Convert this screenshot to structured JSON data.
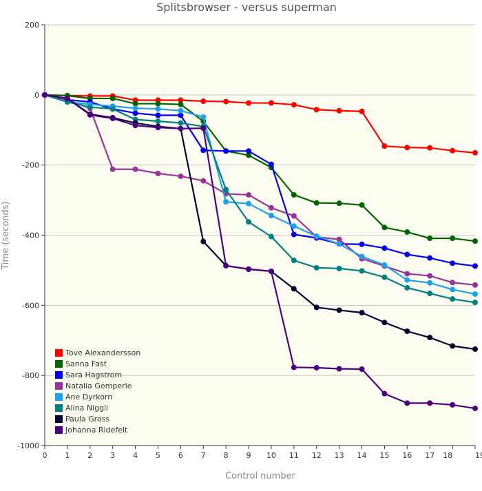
{
  "chart_data": {
    "type": "line",
    "title": "Splitsbrowser - versus superman",
    "xlabel": "Control number",
    "ylabel": "Time (seconds)",
    "xlim": [
      0,
      19
    ],
    "ylim": [
      -1000,
      200
    ],
    "yticks": [
      200,
      0,
      -200,
      -400,
      -600,
      -800,
      -1000
    ],
    "xticks": [
      {
        "value": 0,
        "label": "0"
      },
      {
        "value": 1,
        "label": "1"
      },
      {
        "value": 2,
        "label": "2"
      },
      {
        "value": 3,
        "label": "3"
      },
      {
        "value": 4,
        "label": "4"
      },
      {
        "value": 5,
        "label": "5"
      },
      {
        "value": 6,
        "label": "6"
      },
      {
        "value": 7,
        "label": "7"
      },
      {
        "value": 8,
        "label": "8"
      },
      {
        "value": 9,
        "label": "9"
      },
      {
        "value": 10,
        "label": "10"
      },
      {
        "value": 11,
        "label": "11"
      },
      {
        "value": 12,
        "label": "12"
      },
      {
        "value": 13,
        "label": "13"
      },
      {
        "value": 14,
        "label": "14"
      },
      {
        "value": 15,
        "label": "15"
      },
      {
        "value": 16,
        "label": "16"
      },
      {
        "value": 17,
        "label": "17"
      },
      {
        "value": 18,
        "label": "18"
      },
      {
        "value": 19,
        "label": "19"
      }
    ],
    "x": [
      0,
      1,
      2,
      3,
      4,
      5,
      6,
      7,
      8,
      9,
      10,
      11,
      12,
      13,
      14,
      15,
      16,
      17,
      18,
      19
    ],
    "grid": "horizontal",
    "legend": "bottom-left",
    "plot_background": "#fdfcf0",
    "series": [
      {
        "name": "Tove Alexandersson",
        "color": "#ff0000",
        "values": [
          0,
          -2,
          -3,
          -3,
          -15,
          -15,
          -15,
          -18,
          -19,
          -23,
          -23,
          -28,
          -42,
          -45,
          -47,
          -146,
          -150,
          -151,
          -159,
          -165
        ]
      },
      {
        "name": "Sanna Fast",
        "color": "#006400",
        "values": [
          0,
          -2,
          -10,
          -10,
          -25,
          -25,
          -27,
          -75,
          -160,
          -172,
          -207,
          -285,
          -308,
          -309,
          -314,
          -378,
          -391,
          -409,
          -409,
          -417
        ]
      },
      {
        "name": "Sara Hagstrom",
        "color": "#0000ee",
        "values": [
          0,
          -14,
          -20,
          -40,
          -52,
          -58,
          -58,
          -158,
          -160,
          -160,
          -198,
          -398,
          -408,
          -425,
          -426,
          -437,
          -455,
          -465,
          -480,
          -488
        ]
      },
      {
        "name": "Natalia Gemperle",
        "color": "#993399",
        "values": [
          0,
          -14,
          -38,
          -212,
          -212,
          -224,
          -232,
          -245,
          -282,
          -285,
          -322,
          -345,
          -405,
          -412,
          -467,
          -488,
          -510,
          -516,
          -535,
          -542
        ]
      },
      {
        "name": "Ane Dyrkorn",
        "color": "#1e9fef",
        "values": [
          0,
          -20,
          -27,
          -32,
          -38,
          -40,
          -45,
          -63,
          -305,
          -310,
          -344,
          -374,
          -403,
          -425,
          -461,
          -485,
          -528,
          -536,
          -555,
          -568
        ]
      },
      {
        "name": "Alina Niggli",
        "color": "#008080",
        "values": [
          0,
          -20,
          -35,
          -40,
          -70,
          -75,
          -80,
          -90,
          -270,
          -362,
          -404,
          -472,
          -493,
          -495,
          -502,
          -520,
          -550,
          -566,
          -582,
          -592
        ]
      },
      {
        "name": "Paula Gross",
        "color": "#000033",
        "values": [
          0,
          -10,
          -55,
          -65,
          -80,
          -90,
          -96,
          -418,
          -487,
          -497,
          -503,
          -553,
          -606,
          -614,
          -621,
          -649,
          -674,
          -692,
          -716,
          -725
        ]
      },
      {
        "name": "Johanna Ridefelt",
        "color": "#4b0082",
        "values": [
          0,
          -10,
          -57,
          -67,
          -87,
          -93,
          -96,
          -95,
          -487,
          -497,
          -503,
          -777,
          -778,
          -781,
          -782,
          -852,
          -879,
          -879,
          -884,
          -894
        ]
      }
    ]
  }
}
